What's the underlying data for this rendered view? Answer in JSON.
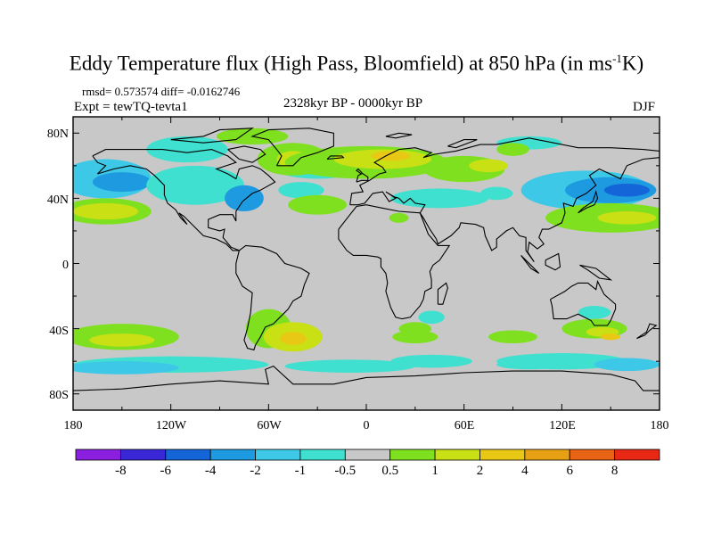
{
  "figure": {
    "title_main": "Eddy Temperature flux (High Pass, Bloomfield) at 850 hPa (in ms",
    "title_sup": "-1",
    "title_end": "K)",
    "stats": "rmsd= 0.573574 diff= -0.0162746",
    "expt": "Expt = tewTQ-tevta1",
    "period": "2328kyr BP - 0000kyr BP",
    "season": "DJF"
  },
  "axes": {
    "lat_labels": [
      "80N",
      "40N",
      "0",
      "40S",
      "80S"
    ],
    "lon_labels": [
      "180",
      "120W",
      "60W",
      "0",
      "60E",
      "120E",
      "180"
    ]
  },
  "colorbar": {
    "labels": [
      "-8",
      "-6",
      "-4",
      "-2",
      "-1",
      "-0.5",
      "0.5",
      "1",
      "2",
      "4",
      "6",
      "8"
    ],
    "colors": [
      "#8a1fe0",
      "#3a28d8",
      "#1466d8",
      "#1e9be0",
      "#3cc8e6",
      "#40e0d0",
      "#c8c8c8",
      "#7ee01e",
      "#c8e014",
      "#e8c814",
      "#e8a014",
      "#e86414",
      "#e82814"
    ]
  },
  "map": {
    "background": "#c8c8c8",
    "colors": {
      "pos1": "#7ee01e",
      "pos2": "#c8e014",
      "pos3": "#e8c814",
      "pos4": "#e8a014",
      "neg1": "#40e0d0",
      "neg2": "#3cc8e6",
      "neg3": "#1e9be0",
      "neg4": "#1466d8"
    }
  }
}
